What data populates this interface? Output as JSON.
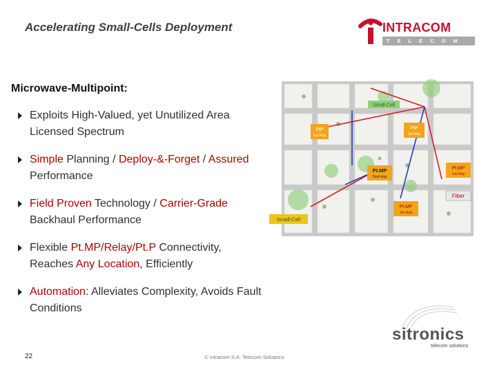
{
  "header": {
    "title": "Accelerating Small-Cells Deployment",
    "logo_name": "INTRACOM",
    "logo_sub": "TELECOM",
    "brand_color": "#c8102e"
  },
  "main": {
    "heading": "Microwave-Multipoint:",
    "bullets": [
      [
        "Exploits High-Valued, yet Unutilized Area Licensed Spectrum"
      ],
      [
        "Simple",
        " Planning / ",
        "Deploy-&-Forget",
        " / ",
        "Assured",
        " Performance"
      ],
      [
        "Field Proven",
        " Technology / ",
        "Carrier-Grade",
        " Backhaul Performance"
      ],
      [
        "Flexible ",
        "Pt.MP/Relay/Pt.P",
        " Connectivity, Reaches ",
        "Any Location",
        ", Efficiently"
      ],
      [
        "Automation",
        ": Alleviates Complexity, Avoids Fault Conditions"
      ]
    ]
  },
  "figure": {
    "labels": {
      "small_cell_top": "Small-Cell",
      "small_cell_left": "Small-Cell",
      "ptp_a": "PtP",
      "ptp_a_hop": "1st Hop",
      "ptp_b": "PtP",
      "ptp_b_hop": "1st Hop",
      "ptmp_center": "Pt.MP",
      "ptmp_center_hop": "2nd Hop",
      "ptmp_right": "Pt.MP",
      "ptmp_right_hop": "1st Hop",
      "fiber": "Fiber",
      "ptmp_bottom": "Pt.MP",
      "ptmp_bottom_hop": "1st Hop"
    },
    "colors": {
      "road": "#c9c9c9",
      "block": "#f1f1ee",
      "cell": "#8fd07a",
      "link_red": "#d21f1f",
      "link_blue": "#1f3fbf",
      "orange": "#f2a51a",
      "fiber_box": "#e8e8e8"
    }
  },
  "footer": {
    "page_number": "22",
    "copyright": "© Intracom S.A. Telecom Solutions"
  },
  "partner": {
    "name": "sitronics",
    "tagline": "telecom solutions"
  }
}
